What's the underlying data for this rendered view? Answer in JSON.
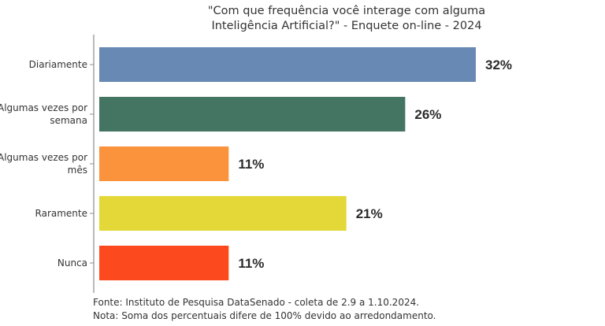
{
  "chart_data": {
    "type": "bar",
    "orientation": "horizontal",
    "title": [
      "\"Com que frequência você interage com alguma",
      "Inteligência Artificial?\" - Enquete on-line - 2024"
    ],
    "categories": [
      [
        "Diariamente"
      ],
      [
        "Algumas vezes por",
        "semana"
      ],
      [
        "Algumas vezes por",
        "mês"
      ],
      [
        "Raramente"
      ],
      [
        "Nunca"
      ]
    ],
    "values": [
      32,
      26,
      11,
      21,
      11
    ],
    "value_labels": [
      "32%",
      "26%",
      "11%",
      "21%",
      "11%"
    ],
    "colors": [
      "#6789b3",
      "#447563",
      "#fb923c",
      "#e3d837",
      "#fc4a1e"
    ],
    "xlim": [
      0,
      32
    ],
    "grid": false,
    "legend": "none"
  },
  "notes": {
    "source": "Fonte: Instituto de Pesquisa DataSenado - coleta de 2.9 a 1.10.2024.",
    "note": "Nota: Soma dos percentuais difere de 100% devido ao arredondamento."
  }
}
